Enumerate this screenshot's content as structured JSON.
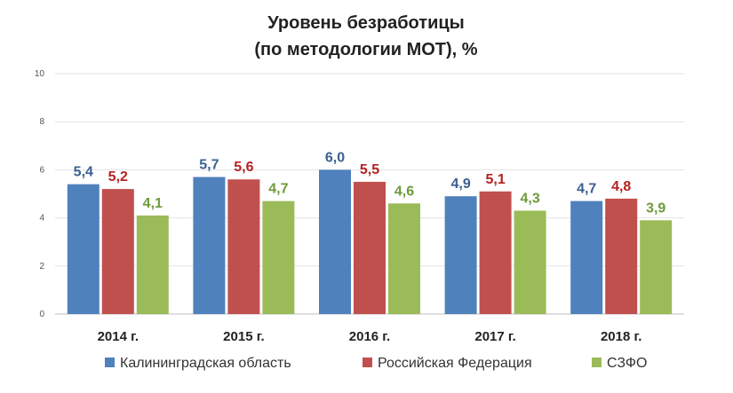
{
  "chart_data": {
    "type": "bar",
    "title_lines": [
      "Уровень безработицы",
      "(по методологии МОТ), %"
    ],
    "categories": [
      "2014 г.",
      "2015 г.",
      "2016 г.",
      "2017 г.",
      "2018 г."
    ],
    "series": [
      {
        "name": "Калининградская область",
        "color": "#4F81BD",
        "label_color": "#3A5F8F",
        "values": [
          5.4,
          5.7,
          6.0,
          4.9,
          4.7
        ],
        "labels": [
          "5,4",
          "5,7",
          "6,0",
          "4,9",
          "4,7"
        ]
      },
      {
        "name": "Российская Федерация",
        "color": "#C0504D",
        "label_color": "#B22222",
        "values": [
          5.2,
          5.6,
          5.5,
          5.1,
          4.8
        ],
        "labels": [
          "5,2",
          "5,6",
          "5,5",
          "5,1",
          "4,8"
        ]
      },
      {
        "name": "СЗФО",
        "color": "#9BBB59",
        "label_color": "#6E9A3A",
        "values": [
          4.1,
          4.7,
          4.6,
          4.3,
          3.9
        ],
        "labels": [
          "4,1",
          "4,7",
          "4,6",
          "4,3",
          "3,9"
        ]
      }
    ],
    "ylim": [
      0,
      10
    ],
    "yticks": [
      "0",
      "2",
      "4",
      "6",
      "8",
      "10"
    ],
    "grid": true,
    "legend_position": "bottom"
  }
}
